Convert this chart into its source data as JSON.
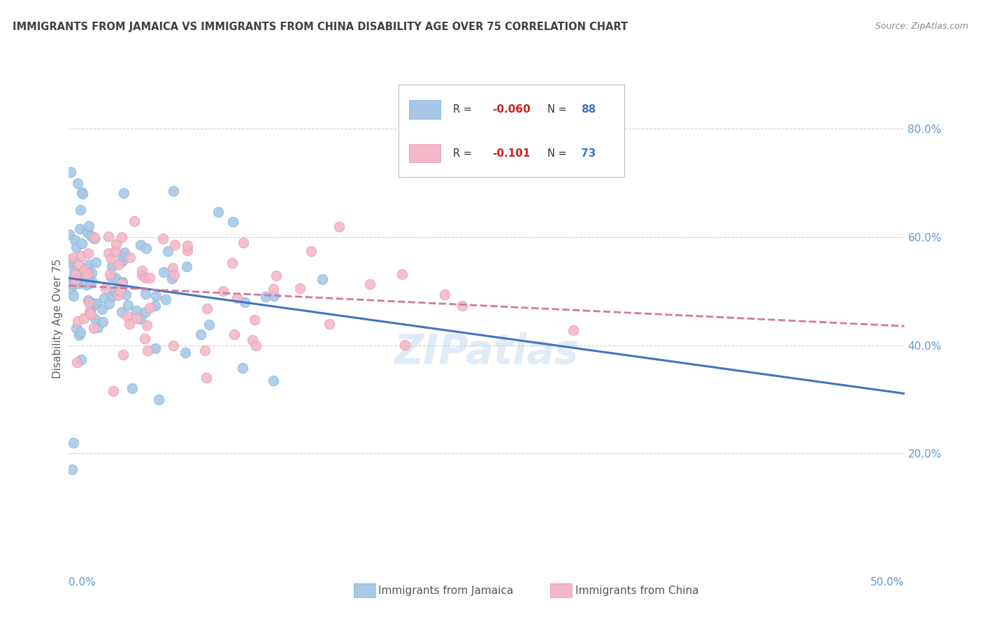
{
  "title": "IMMIGRANTS FROM JAMAICA VS IMMIGRANTS FROM CHINA DISABILITY AGE OVER 75 CORRELATION CHART",
  "source_text": "Source: ZipAtlas.com",
  "ylabel": "Disability Age Over 75",
  "xmin": 0.0,
  "xmax": 0.5,
  "ymin": 0.0,
  "ymax": 0.9,
  "yticks": [
    0.2,
    0.4,
    0.6,
    0.8
  ],
  "ytick_labels": [
    "20.0%",
    "40.0%",
    "60.0%",
    "80.0%"
  ],
  "watermark": "ZIPatlas",
  "jamaica_color": "#a8c8e8",
  "jamaica_edge": "#7bafd4",
  "jamaica_line": "#4472c4",
  "china_color": "#f4b8c8",
  "china_edge": "#e090a8",
  "china_line": "#d4789a",
  "background_color": "#ffffff",
  "grid_color": "#cccccc",
  "axis_label_color": "#5b9bd5",
  "title_color": "#404040",
  "ylabel_color": "#606060",
  "source_color": "#888888",
  "legend_R_color": "#cc2222",
  "legend_N_color": "#4472c4"
}
